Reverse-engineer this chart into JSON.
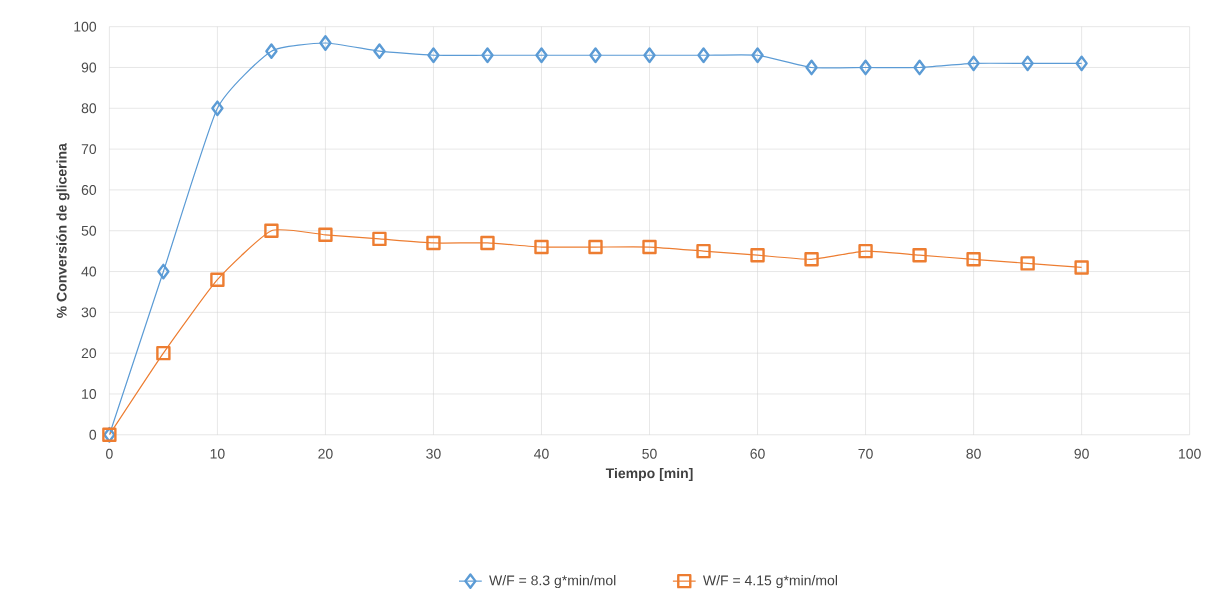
{
  "chart_data": {
    "type": "line",
    "xlabel": "Tiempo [min]",
    "ylabel": "% Conversión  de glicerina",
    "x": [
      0,
      5,
      10,
      15,
      20,
      25,
      30,
      35,
      40,
      45,
      50,
      55,
      60,
      65,
      70,
      75,
      80,
      85,
      90
    ],
    "series": [
      {
        "name": "W/F = 8.3 g*min/mol",
        "color": "#5b9bd5",
        "marker": "diamond",
        "values": [
          0,
          40,
          80,
          94,
          96,
          94,
          93,
          93,
          93,
          93,
          93,
          93,
          93,
          90,
          90,
          90,
          91,
          91,
          91
        ]
      },
      {
        "name": "W/F = 4.15 g*min/mol",
        "color": "#ed7d31",
        "marker": "square",
        "values": [
          0,
          20,
          38,
          50,
          49,
          48,
          47,
          47,
          46,
          46,
          46,
          45,
          44,
          43,
          45,
          44,
          43,
          42,
          41
        ]
      }
    ],
    "xlim": [
      0,
      100
    ],
    "xticks": [
      0,
      10,
      20,
      30,
      40,
      50,
      60,
      70,
      80,
      90,
      100
    ],
    "ylim": [
      0,
      100
    ],
    "yticks": [
      0,
      10,
      20,
      30,
      40,
      50,
      60,
      70,
      80,
      90,
      100
    ],
    "grid": true,
    "legend": "bottom"
  }
}
